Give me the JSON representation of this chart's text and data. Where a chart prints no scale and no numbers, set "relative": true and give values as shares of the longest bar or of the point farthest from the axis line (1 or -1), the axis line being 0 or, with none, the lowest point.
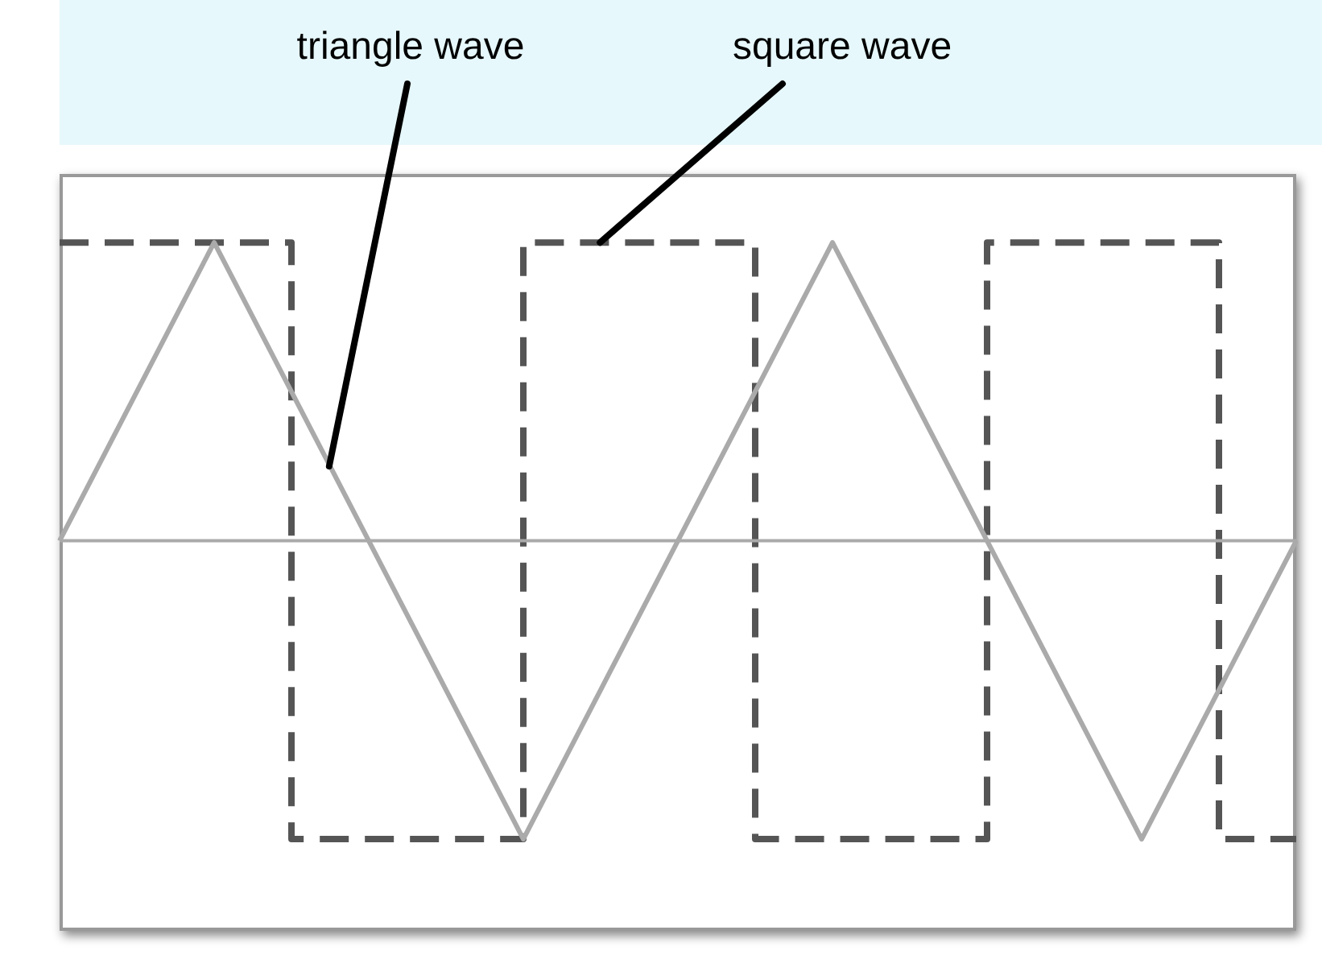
{
  "chart_data": {
    "type": "line",
    "relative": true,
    "categories": [
      null,
      null,
      null,
      null,
      null,
      null,
      null,
      null,
      null,
      null,
      null,
      null,
      null,
      null,
      null,
      null,
      null
    ],
    "series": [
      {
        "color": "#aaaaaa",
        "line_style": "solid",
        "values": [
          0,
          0.5,
          1,
          0.5,
          0,
          -0.5,
          -1,
          -0.5,
          0,
          0.5,
          1,
          0.5,
          0,
          -0.5,
          -1,
          -0.5,
          0
        ]
      },
      {
        "type": "step",
        "color": "#555555",
        "line_style": "dashed",
        "values": [
          1,
          1,
          1,
          -1,
          -1,
          -1,
          1,
          1,
          1,
          -1,
          -1,
          -1,
          1,
          1,
          1,
          -1,
          -1
        ]
      }
    ],
    "annotations": [
      "triangle wave",
      "square wave"
    ]
  }
}
